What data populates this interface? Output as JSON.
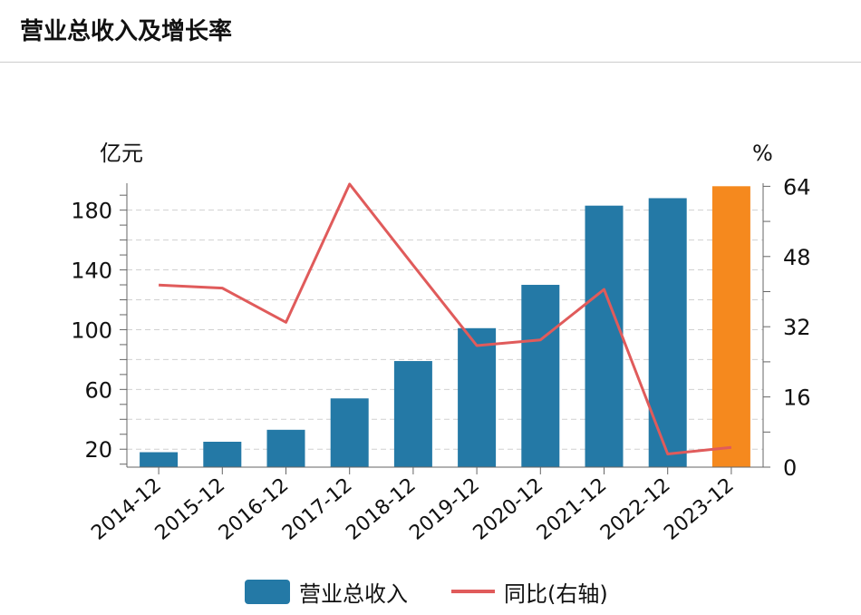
{
  "header": {
    "title": "营业总收入及增长率"
  },
  "chart_data": {
    "type": "bar",
    "categories": [
      "2014-12",
      "2015-12",
      "2016-12",
      "2017-12",
      "2018-12",
      "2019-12",
      "2020-12",
      "2021-12",
      "2022-12",
      "2023-12"
    ],
    "series": [
      {
        "name": "营业总收入",
        "type": "bar",
        "axis": "left",
        "values": [
          18,
          25,
          33,
          54,
          79,
          101,
          130,
          183,
          188,
          196
        ],
        "color": "#2479a6",
        "highlight_color": "#f5891e",
        "highlight_index": 9
      },
      {
        "name": "同比(右轴)",
        "type": "line",
        "axis": "right",
        "values": [
          41.5,
          40.8,
          33.0,
          64.5,
          46.0,
          27.7,
          29.0,
          40.5,
          3.0,
          4.5
        ],
        "color": "#e05b5b"
      }
    ],
    "left_axis": {
      "unit": "亿元",
      "min": 8,
      "max": 198,
      "ticks": [
        20,
        60,
        100,
        140,
        180
      ]
    },
    "right_axis": {
      "unit": "%",
      "min": 0,
      "max": 64.7,
      "ticks": [
        0,
        16,
        32,
        48,
        64
      ]
    },
    "grid": true,
    "legend_position": "bottom"
  }
}
